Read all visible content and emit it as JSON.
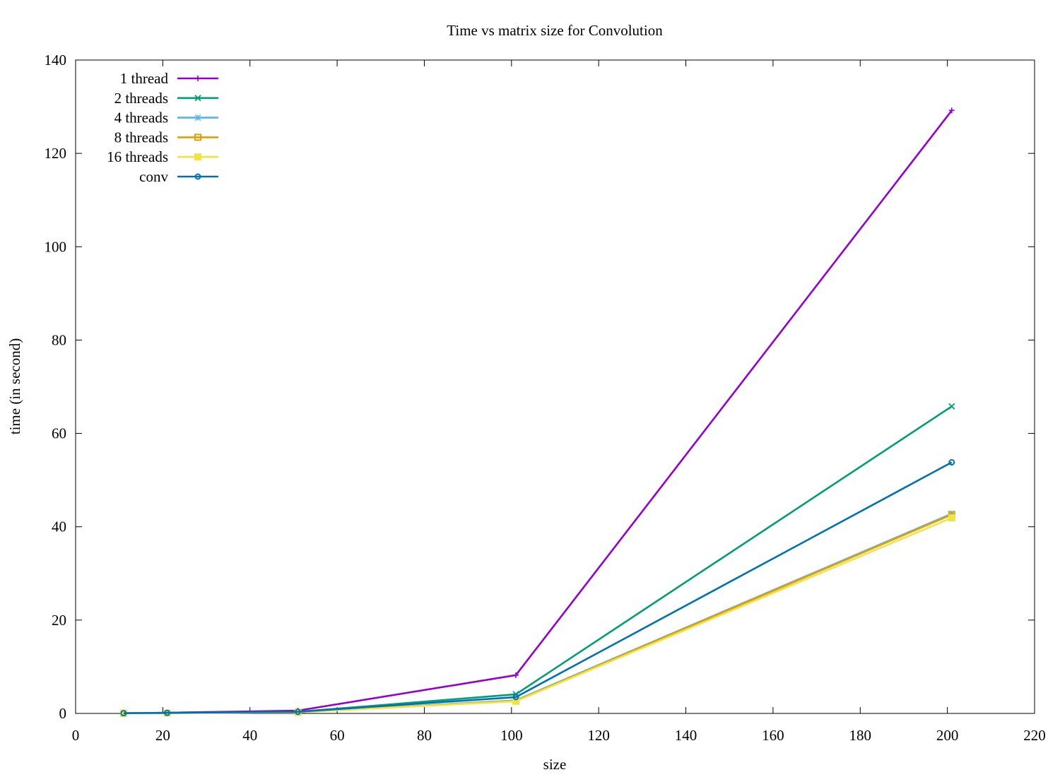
{
  "chart_data": {
    "type": "line",
    "title": "Time vs matrix size for Convolution",
    "xlabel": "size",
    "ylabel": "time (in second)",
    "xlim": [
      0,
      220
    ],
    "ylim": [
      0,
      140
    ],
    "xticks": [
      0,
      20,
      40,
      60,
      80,
      100,
      120,
      140,
      160,
      180,
      200,
      220
    ],
    "yticks": [
      0,
      20,
      40,
      60,
      80,
      100,
      120,
      140
    ],
    "legend_position": "top-left",
    "grid": false,
    "x": [
      11,
      21,
      51,
      101,
      201
    ],
    "series": [
      {
        "name": "1 thread",
        "color": "#9400d3",
        "marker": "plus",
        "values": [
          0.05,
          0.15,
          0.6,
          8.2,
          129.2
        ]
      },
      {
        "name": "2 threads",
        "color": "#009e73",
        "marker": "cross",
        "values": [
          0.04,
          0.1,
          0.35,
          4.1,
          65.8
        ]
      },
      {
        "name": "4 threads",
        "color": "#56b4e9",
        "marker": "star",
        "values": [
          0.04,
          0.08,
          0.25,
          2.8,
          42.8
        ]
      },
      {
        "name": "8 threads",
        "color": "#e69f00",
        "marker": "square",
        "values": [
          0.04,
          0.08,
          0.25,
          2.7,
          42.6
        ]
      },
      {
        "name": "16 threads",
        "color": "#f0e442",
        "marker": "filled-square",
        "values": [
          0.04,
          0.08,
          0.25,
          2.6,
          41.9
        ]
      },
      {
        "name": "conv",
        "color": "#0072b2",
        "marker": "circle",
        "values": [
          0.05,
          0.12,
          0.35,
          3.5,
          53.8
        ]
      }
    ]
  }
}
